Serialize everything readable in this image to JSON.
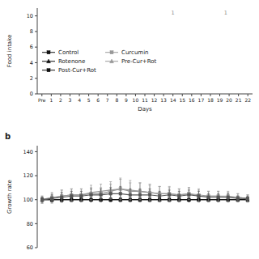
{
  "chart_data": [
    {
      "type": "line",
      "xlabel": "Days",
      "ylabel": "Food intake",
      "categories": [
        "Pre",
        "1",
        "2",
        "3",
        "4",
        "5",
        "6",
        "7",
        "8",
        "9",
        "10",
        "11",
        "12",
        "13",
        "14",
        "15",
        "16",
        "17",
        "18",
        "19",
        "20",
        "21",
        "22"
      ],
      "ylim": [
        0,
        11
      ],
      "yticks": [
        0,
        2,
        4,
        6,
        8,
        10
      ],
      "legend": "left",
      "annotations": [
        "1",
        "1"
      ],
      "series": [
        {
          "name": "Control",
          "color": "#111111",
          "marker": "square",
          "values": [
            null,
            null,
            null,
            null,
            null,
            null,
            null,
            null,
            null,
            null,
            null,
            null,
            null,
            null,
            null,
            null,
            null,
            null,
            null,
            null,
            null,
            null,
            null
          ]
        },
        {
          "name": "Curcumin",
          "color": "#999999",
          "marker": "square",
          "values": [
            null,
            null,
            null,
            null,
            null,
            null,
            null,
            null,
            null,
            null,
            null,
            null,
            null,
            null,
            null,
            null,
            null,
            null,
            null,
            null,
            null,
            null,
            null
          ]
        },
        {
          "name": "Rotenone",
          "color": "#111111",
          "marker": "triangle",
          "values": [
            null,
            null,
            null,
            null,
            null,
            null,
            null,
            null,
            null,
            null,
            null,
            null,
            null,
            null,
            null,
            null,
            null,
            null,
            null,
            null,
            null,
            null,
            null
          ]
        },
        {
          "name": "Pre-Cur+Rot",
          "color": "#999999",
          "marker": "triangle",
          "values": [
            null,
            null,
            null,
            null,
            null,
            null,
            null,
            null,
            null,
            null,
            null,
            null,
            null,
            null,
            null,
            null,
            null,
            null,
            null,
            null,
            null,
            null,
            null
          ]
        },
        {
          "name": "Post-Cur+Rot",
          "color": "#111111",
          "marker": "square",
          "values": [
            null,
            null,
            null,
            null,
            null,
            null,
            null,
            null,
            null,
            null,
            null,
            null,
            null,
            null,
            null,
            null,
            null,
            null,
            null,
            null,
            null,
            null,
            null
          ]
        }
      ]
    },
    {
      "type": "line",
      "ylabel": "Growth rate",
      "annotations": [
        "b"
      ],
      "x": [
        1,
        2,
        3,
        4,
        5,
        6,
        7,
        8,
        9,
        10,
        11,
        12,
        13,
        14,
        15,
        16,
        17,
        18,
        19,
        20,
        21,
        22
      ],
      "xlim": [
        0.5,
        22.5
      ],
      "ylim": [
        60,
        145
      ],
      "yticks": [
        60,
        80,
        100,
        120,
        140
      ],
      "tick_labels": "y",
      "series": [
        {
          "name": "Control",
          "color": "#111111",
          "marker": "square",
          "values": [
            100,
            100,
            100,
            100,
            100,
            100,
            100,
            100,
            100,
            100,
            100,
            100,
            100,
            100,
            100,
            100,
            100,
            100,
            100,
            100,
            100,
            100
          ],
          "errors": [
            1.5,
            1.5,
            1.5,
            1.5,
            1.5,
            1.5,
            1.5,
            1.5,
            1.5,
            1.5,
            1.5,
            1.5,
            1.5,
            1.5,
            1.5,
            1.5,
            1.5,
            1.5,
            1.5,
            1.5,
            1.5,
            1.5
          ]
        },
        {
          "name": "Curcumin",
          "color": "#999999",
          "marker": "square",
          "values": [
            100,
            102,
            103,
            104,
            104,
            105,
            105,
            107,
            109,
            107,
            107,
            106,
            105,
            105,
            104,
            105,
            104,
            103,
            103,
            103,
            102,
            101
          ],
          "errors": [
            3,
            4,
            5,
            5,
            5,
            5,
            5,
            6,
            8,
            7,
            7,
            6,
            6,
            5,
            5,
            5,
            5,
            4,
            4,
            4,
            3,
            3
          ]
        },
        {
          "name": "Rotenone",
          "color": "#111111",
          "marker": "triangle",
          "values": [
            100,
            100,
            100,
            100,
            100,
            100,
            100,
            100,
            100,
            100,
            100,
            100,
            100,
            100,
            100,
            100,
            100,
            100,
            100,
            100,
            100,
            100
          ],
          "errors": [
            1.5,
            1.5,
            1.5,
            1.5,
            1.5,
            1.5,
            1.5,
            1.5,
            1.5,
            1.5,
            1.5,
            1.5,
            1.5,
            1.5,
            1.5,
            1.5,
            1.5,
            1.5,
            1.5,
            1.5,
            1.5,
            1.5
          ]
        },
        {
          "name": "Pre-Cur+Rot",
          "color": "#999999",
          "marker": "triangle",
          "values": [
            100,
            101,
            103,
            104,
            104,
            106,
            107,
            108,
            109,
            108,
            107,
            106,
            105,
            105,
            104,
            105,
            103,
            103,
            103,
            102,
            102,
            101
          ],
          "errors": [
            3,
            4,
            5,
            5,
            5,
            6,
            6,
            7,
            9,
            8,
            7,
            7,
            6,
            6,
            5,
            5,
            5,
            4,
            4,
            4,
            3,
            3
          ]
        },
        {
          "name": "Post-Cur+Rot",
          "color": "#555555",
          "marker": "square",
          "values": [
            100,
            101,
            102,
            103,
            103,
            104,
            104,
            105,
            105,
            104,
            104,
            104,
            103,
            104,
            103,
            104,
            103,
            102,
            102,
            102,
            101,
            101
          ],
          "errors": [
            2,
            3,
            4,
            4,
            4,
            5,
            5,
            5,
            6,
            5,
            5,
            5,
            4,
            4,
            4,
            4,
            4,
            3,
            3,
            3,
            2,
            2
          ]
        }
      ]
    }
  ]
}
